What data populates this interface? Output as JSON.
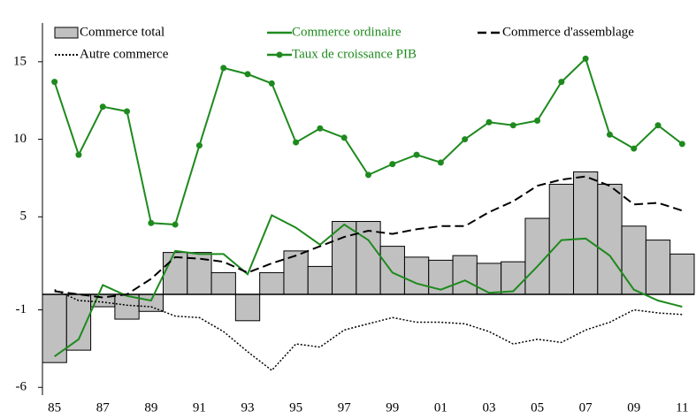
{
  "chart_data": {
    "type": "combo",
    "categories": [
      "85",
      null,
      "87",
      null,
      "89",
      null,
      "91",
      null,
      "93",
      null,
      "95",
      null,
      "97",
      null,
      "99",
      null,
      "01",
      null,
      "03",
      null,
      "05",
      null,
      "07",
      null,
      "09",
      null,
      "11"
    ],
    "ylim": [
      -6.5,
      17.5
    ],
    "yticks": [
      15,
      10,
      5,
      -1,
      -6
    ],
    "series": [
      {
        "name": "Commerce total",
        "type": "bar",
        "color": "#c0c0c0",
        "values": [
          -4.4,
          -3.6,
          -0.8,
          -1.6,
          -1.1,
          2.7,
          2.7,
          1.4,
          -1.7,
          1.4,
          2.8,
          1.8,
          4.7,
          4.7,
          3.1,
          2.4,
          2.2,
          2.5,
          2.0,
          2.1,
          4.9,
          7.1,
          7.9,
          7.1,
          4.4,
          3.5,
          2.6
        ]
      },
      {
        "name": "Commerce ordinaire",
        "type": "line",
        "dash": "solid",
        "color": "#1e8a1e",
        "values": [
          -4.0,
          -2.9,
          0.6,
          -0.1,
          -0.4,
          2.8,
          2.6,
          2.6,
          1.3,
          5.1,
          4.3,
          3.2,
          4.5,
          3.5,
          1.4,
          0.7,
          0.3,
          0.9,
          0.1,
          0.2,
          1.8,
          3.5,
          3.6,
          2.5,
          0.3,
          -0.4,
          -0.8
        ]
      },
      {
        "name": "Commerce d'assemblage",
        "type": "line",
        "dash": "dashed",
        "color": "#000000",
        "values": [
          0.2,
          0.0,
          -0.2,
          0.0,
          1.0,
          2.4,
          2.3,
          2.1,
          1.4,
          2.0,
          2.5,
          3.1,
          3.7,
          4.1,
          3.9,
          4.2,
          4.4,
          4.4,
          5.3,
          6.0,
          7.0,
          7.4,
          7.6,
          7.0,
          5.8,
          5.9,
          5.4
        ]
      },
      {
        "name": "Autre commerce",
        "type": "line",
        "dash": "dotted",
        "color": "#000000",
        "values": [
          0.3,
          -0.4,
          -0.5,
          -0.7,
          -0.8,
          -1.4,
          -1.5,
          -2.4,
          -3.7,
          -4.9,
          -3.2,
          -3.4,
          -2.3,
          -1.9,
          -1.5,
          -1.8,
          -1.8,
          -1.9,
          -2.4,
          -3.2,
          -2.9,
          -3.1,
          -2.3,
          -1.8,
          -1.0,
          -1.2,
          -1.3
        ]
      },
      {
        "name": "Taux de croissance PIB",
        "type": "line",
        "dash": "solid",
        "marker": true,
        "color": "#1e8a1e",
        "values": [
          13.7,
          9.0,
          12.1,
          11.8,
          4.6,
          4.5,
          9.6,
          14.6,
          14.2,
          13.6,
          9.8,
          10.7,
          10.1,
          7.7,
          8.4,
          9.0,
          8.5,
          10.0,
          11.1,
          10.9,
          11.2,
          13.7,
          15.2,
          10.3,
          9.4,
          10.9,
          9.7
        ]
      }
    ]
  }
}
